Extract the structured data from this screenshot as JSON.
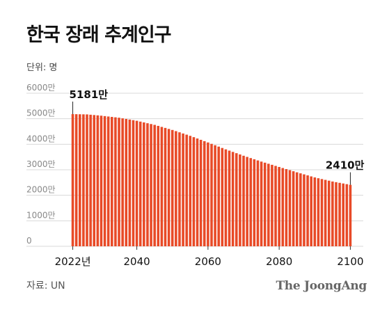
{
  "title": "한국 장래 추계인구",
  "unit_label": "단위: 명",
  "source": "자료: UN",
  "brand": "The JoongAng",
  "colors": {
    "bar": "#e84a27",
    "bar_gap": "#ffffff",
    "grid": "#d8d8d8",
    "axis_text": "#888888",
    "text": "#111111"
  },
  "chart_data": {
    "type": "bar",
    "title": "한국 장래 추계인구",
    "ylabel": "단위: 명",
    "xlabel": "",
    "ylim": [
      0,
      6000
    ],
    "y_ticks": [
      0,
      1000,
      2000,
      3000,
      4000,
      5000,
      6000
    ],
    "y_tick_labels": [
      "0",
      "1000만",
      "2000만",
      "3000만",
      "4000만",
      "5000만",
      "6000만"
    ],
    "x_ticks": [
      2022,
      2040,
      2060,
      2080,
      2100
    ],
    "x_tick_labels": [
      "2022년",
      "2040",
      "2060",
      "2080",
      "2100"
    ],
    "grid": true,
    "series": [
      {
        "x_start": 2022,
        "x_end": 2100,
        "keyframes": [
          {
            "x": 2022,
            "y": 5181
          },
          {
            "x": 2026,
            "y": 5170
          },
          {
            "x": 2030,
            "y": 5120
          },
          {
            "x": 2035,
            "y": 5040
          },
          {
            "x": 2040,
            "y": 4920
          },
          {
            "x": 2045,
            "y": 4760
          },
          {
            "x": 2050,
            "y": 4560
          },
          {
            "x": 2055,
            "y": 4330
          },
          {
            "x": 2060,
            "y": 4070
          },
          {
            "x": 2065,
            "y": 3800
          },
          {
            "x": 2070,
            "y": 3550
          },
          {
            "x": 2075,
            "y": 3320
          },
          {
            "x": 2080,
            "y": 3110
          },
          {
            "x": 2085,
            "y": 2900
          },
          {
            "x": 2090,
            "y": 2700
          },
          {
            "x": 2095,
            "y": 2540
          },
          {
            "x": 2100,
            "y": 2410
          }
        ]
      }
    ],
    "annotations": [
      {
        "x": 2022,
        "y": 5181,
        "label": "5181만"
      },
      {
        "x": 2100,
        "y": 2410,
        "label": "2410만"
      }
    ]
  }
}
